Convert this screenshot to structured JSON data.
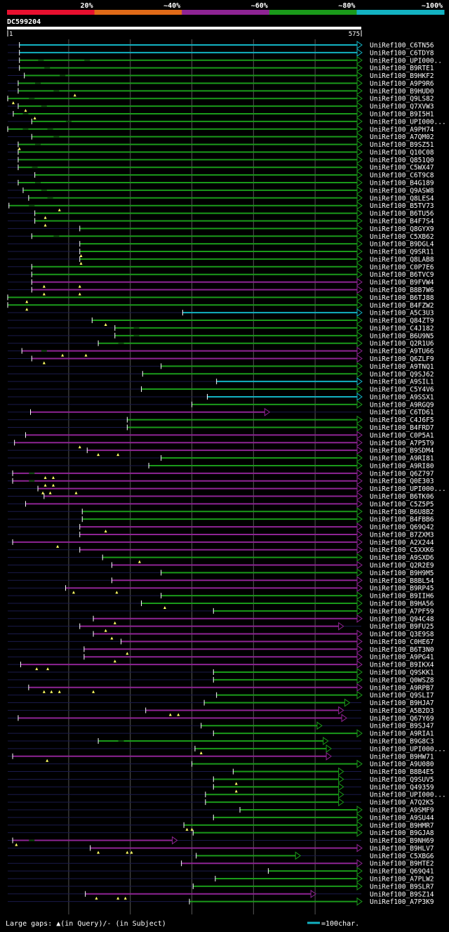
{
  "legend": {
    "labels": [
      "20%",
      "~40%",
      "~60%",
      "~80%",
      "~100%"
    ],
    "colors": [
      "#e8102f",
      "#e06a18",
      "#8e2494",
      "#1a9a1a",
      "#13b2c2"
    ]
  },
  "query": {
    "name": "DC599204",
    "start": "1",
    "end": "575",
    "length": 575
  },
  "footer": {
    "gaps_text": "Large gaps: ▲(in Query)/- (in Subject)",
    "scale_text": "=100char."
  },
  "colors": {
    "background": "#000000",
    "track": "#1a1a4a",
    "grid": "#555555",
    "label": "#ffffff"
  },
  "chart_data": {
    "type": "alignment-map",
    "x_range": [
      1,
      575
    ],
    "hits": [
      {
        "label": "UniRef100_C6TN56",
        "s": 20,
        "e": 575,
        "c": "#13b2c2",
        "tri": [],
        "gaps": []
      },
      {
        "label": "UniRef100_C6TDY8",
        "s": 20,
        "e": 575,
        "c": "#13b2c2",
        "tri": [],
        "gaps": []
      },
      {
        "label": "UniRef100_UPI000..",
        "s": 20,
        "e": 575,
        "c": "#1a9a1a",
        "tri": [],
        "gaps": [
          55,
          130
        ]
      },
      {
        "label": "UniRef100_B9RTE1",
        "s": 20,
        "e": 575,
        "c": "#1a9a1a",
        "tri": [],
        "gaps": [
          65
        ]
      },
      {
        "label": "UniRef100_B9HKF2",
        "s": 28,
        "e": 575,
        "c": "#1a9a1a",
        "tri": [],
        "gaps": [
          90
        ]
      },
      {
        "label": "UniRef100_A9P9R6",
        "s": 18,
        "e": 575,
        "c": "#1a9a1a",
        "tri": [],
        "gaps": [
          50
        ]
      },
      {
        "label": "UniRef100_B9HUD0",
        "s": 18,
        "e": 575,
        "c": "#1a9a1a",
        "tri": [
          110
        ],
        "gaps": [
          80
        ]
      },
      {
        "label": "UniRef100_Q9LS82",
        "s": 1,
        "e": 575,
        "c": "#1a9a1a",
        "tri": [
          10
        ],
        "gaps": [
          40
        ]
      },
      {
        "label": "UniRef100_Q7XVW3",
        "s": 18,
        "e": 575,
        "c": "#1a9a1a",
        "tri": [
          30
        ],
        "gaps": [
          60
        ]
      },
      {
        "label": "UniRef100_B9I5H1",
        "s": 10,
        "e": 575,
        "c": "#1a9a1a",
        "tri": [
          45
        ],
        "gaps": [
          30
        ]
      },
      {
        "label": "UniRef100_UPI000...",
        "s": 40,
        "e": 575,
        "c": "#1a9a1a",
        "tri": [],
        "gaps": [
          100
        ]
      },
      {
        "label": "UniRef100_A9PH74",
        "s": 1,
        "e": 575,
        "c": "#1a9a1a",
        "tri": [],
        "gaps": [
          30,
          70
        ]
      },
      {
        "label": "UniRef100_A7QM02",
        "s": 40,
        "e": 575,
        "c": "#1a9a1a",
        "tri": [],
        "gaps": [
          80
        ]
      },
      {
        "label": "UniRef100_B9SZ51",
        "s": 18,
        "e": 575,
        "c": "#1a9a1a",
        "tri": [
          20
        ],
        "gaps": [
          50
        ]
      },
      {
        "label": "UniRef100_Q10C08",
        "s": 18,
        "e": 575,
        "c": "#1a9a1a",
        "tri": [],
        "gaps": []
      },
      {
        "label": "UniRef100_Q851Q0",
        "s": 18,
        "e": 575,
        "c": "#1a9a1a",
        "tri": [],
        "gaps": []
      },
      {
        "label": "UniRef100_C5WX47",
        "s": 18,
        "e": 575,
        "c": "#1a9a1a",
        "tri": [],
        "gaps": [
          45
        ]
      },
      {
        "label": "UniRef100_C6T9C8",
        "s": 45,
        "e": 575,
        "c": "#1a9a1a",
        "tri": [],
        "gaps": []
      },
      {
        "label": "UniRef100_B4G189",
        "s": 18,
        "e": 575,
        "c": "#1a9a1a",
        "tri": [],
        "gaps": [
          50
        ]
      },
      {
        "label": "UniRef100_Q9ASW8",
        "s": 26,
        "e": 575,
        "c": "#1a9a1a",
        "tri": [],
        "gaps": [
          60
        ]
      },
      {
        "label": "UniRef100_Q8LES4",
        "s": 35,
        "e": 575,
        "c": "#1a9a1a",
        "tri": [],
        "gaps": [
          70
        ]
      },
      {
        "label": "UniRef100_B5TV73",
        "s": 3,
        "e": 575,
        "c": "#1a9a1a",
        "tri": [
          85
        ],
        "gaps": [
          40
        ]
      },
      {
        "label": "UniRef100_B6TU56",
        "s": 45,
        "e": 575,
        "c": "#1a9a1a",
        "tri": [
          62
        ],
        "gaps": []
      },
      {
        "label": "UniRef100_B4F7S4",
        "s": 45,
        "e": 575,
        "c": "#1a9a1a",
        "tri": [
          62
        ],
        "gaps": []
      },
      {
        "label": "UniRef100_Q8GYX9",
        "s": 118,
        "e": 575,
        "c": "#1a9a1a",
        "tri": [],
        "gaps": []
      },
      {
        "label": "UniRef100_C5XB62",
        "s": 40,
        "e": 575,
        "c": "#1a9a1a",
        "tri": [],
        "gaps": [
          80
        ]
      },
      {
        "label": "UniRef100_B9DGL4",
        "s": 118,
        "e": 575,
        "c": "#1a9a1a",
        "tri": [],
        "gaps": []
      },
      {
        "label": "UniRef100_Q9SR11",
        "s": 118,
        "e": 575,
        "c": "#1a9a1a",
        "tri": [
          120
        ],
        "gaps": []
      },
      {
        "label": "UniRef100_Q8LAB8",
        "s": 118,
        "e": 575,
        "c": "#1a9a1a",
        "tri": [
          120
        ],
        "gaps": []
      },
      {
        "label": "UniRef100_C0P7E6",
        "s": 40,
        "e": 575,
        "c": "#1a9a1a",
        "tri": [],
        "gaps": []
      },
      {
        "label": "UniRef100_B6TVC9",
        "s": 40,
        "e": 575,
        "c": "#1a9a1a",
        "tri": [],
        "gaps": []
      },
      {
        "label": "UniRef100_B9FVW4",
        "s": 40,
        "e": 575,
        "c": "#8e2494",
        "tri": [
          60,
          118
        ],
        "gaps": []
      },
      {
        "label": "UniRef100_B8B7W6",
        "s": 40,
        "e": 575,
        "c": "#8e2494",
        "tri": [
          60,
          118
        ],
        "gaps": []
      },
      {
        "label": "UniRef100_B6TJ88",
        "s": 1,
        "e": 575,
        "c": "#1a9a1a",
        "tri": [
          32
        ],
        "gaps": []
      },
      {
        "label": "UniRef100_B4FZW2",
        "s": 1,
        "e": 575,
        "c": "#1a9a1a",
        "tri": [
          32
        ],
        "gaps": []
      },
      {
        "label": "UniRef100_A5C3U3",
        "s": 285,
        "e": 575,
        "c": "#13b2c2",
        "tri": [],
        "gaps": []
      },
      {
        "label": "UniRef100_Q84ZT9",
        "s": 138,
        "e": 575,
        "c": "#1a9a1a",
        "tri": [
          160
        ],
        "gaps": []
      },
      {
        "label": "UniRef100_C4J182",
        "s": 175,
        "e": 575,
        "c": "#1a9a1a",
        "tri": [],
        "gaps": [
          210
        ]
      },
      {
        "label": "UniRef100_B6U9N5",
        "s": 175,
        "e": 575,
        "c": "#1a9a1a",
        "tri": [],
        "gaps": [
          210
        ]
      },
      {
        "label": "UniRef100_Q2R1U6",
        "s": 148,
        "e": 575,
        "c": "#1a9a1a",
        "tri": [],
        "gaps": [
          185
        ]
      },
      {
        "label": "UniRef100_A9TU66",
        "s": 24,
        "e": 575,
        "c": "#8e2494",
        "tri": [
          90,
          128
        ],
        "gaps": [
          60
        ]
      },
      {
        "label": "UniRef100_Q6ZLF9",
        "s": 40,
        "e": 575,
        "c": "#8e2494",
        "tri": [
          60
        ],
        "gaps": []
      },
      {
        "label": "UniRef100_A9TNQ1",
        "s": 250,
        "e": 575,
        "c": "#1a9a1a",
        "tri": [],
        "gaps": []
      },
      {
        "label": "UniRef100_Q9SJ62",
        "s": 220,
        "e": 575,
        "c": "#1a9a1a",
        "tri": [],
        "gaps": []
      },
      {
        "label": "UniRef100_A9SIL1",
        "s": 340,
        "e": 575,
        "c": "#13b2c2",
        "tri": [],
        "gaps": []
      },
      {
        "label": "UniRef100_C5Y4V6",
        "s": 218,
        "e": 575,
        "c": "#1a9a1a",
        "tri": [],
        "gaps": []
      },
      {
        "label": "UniRef100_A9SSX1",
        "s": 325,
        "e": 575,
        "c": "#13b2c2",
        "tri": [],
        "gaps": []
      },
      {
        "label": "UniRef100_A9RGQ9",
        "s": 300,
        "e": 575,
        "c": "#1a9a1a",
        "tri": [],
        "gaps": []
      },
      {
        "label": "UniRef100_C6TD61",
        "s": 38,
        "e": 425,
        "c": "#8e2494",
        "tri": [],
        "gaps": []
      },
      {
        "label": "UniRef100_C4J6F5",
        "s": 195,
        "e": 575,
        "c": "#1a9a1a",
        "tri": [],
        "gaps": []
      },
      {
        "label": "UniRef100_B4FRD7",
        "s": 195,
        "e": 575,
        "c": "#1a9a1a",
        "tri": [],
        "gaps": []
      },
      {
        "label": "UniRef100_C0P5A1",
        "s": 30,
        "e": 575,
        "c": "#8e2494",
        "tri": [],
        "gaps": []
      },
      {
        "label": "UniRef100_A7P5T9",
        "s": 12,
        "e": 575,
        "c": "#8e2494",
        "tri": [
          118
        ],
        "gaps": []
      },
      {
        "label": "UniRef100_B9SDM4",
        "s": 130,
        "e": 575,
        "c": "#8e2494",
        "tri": [
          148,
          180
        ],
        "gaps": []
      },
      {
        "label": "UniRef100_A9RI81",
        "s": 250,
        "e": 575,
        "c": "#1a9a1a",
        "tri": [],
        "gaps": []
      },
      {
        "label": "UniRef100_A9RI80",
        "s": 230,
        "e": 575,
        "c": "#1a9a1a",
        "tri": [],
        "gaps": []
      },
      {
        "label": "UniRef100_Q6Z797",
        "s": 9,
        "e": 575,
        "c": "#8e2494",
        "tri": [
          62,
          75
        ],
        "gaps": [
          40
        ]
      },
      {
        "label": "UniRef100_Q0E303",
        "s": 9,
        "e": 575,
        "c": "#8e2494",
        "tri": [
          62,
          75
        ],
        "gaps": [
          40
        ]
      },
      {
        "label": "UniRef100_UPI000...",
        "s": 50,
        "e": 575,
        "c": "#8e2494",
        "tri": [
          58,
          70,
          112
        ],
        "gaps": []
      },
      {
        "label": "UniRef100_B6TK06",
        "s": 60,
        "e": 575,
        "c": "#8e2494",
        "tri": [],
        "gaps": []
      },
      {
        "label": "UniRef100_C5Z5P5",
        "s": 30,
        "e": 575,
        "c": "#8e2494",
        "tri": [],
        "gaps": []
      },
      {
        "label": "UniRef100_B6U8B2",
        "s": 122,
        "e": 575,
        "c": "#1a9a1a",
        "tri": [],
        "gaps": []
      },
      {
        "label": "UniRef100_B4FBB6",
        "s": 122,
        "e": 575,
        "c": "#1a9a1a",
        "tri": [],
        "gaps": []
      },
      {
        "label": "UniRef100_Q69Q42",
        "s": 118,
        "e": 575,
        "c": "#8e2494",
        "tri": [
          160
        ],
        "gaps": []
      },
      {
        "label": "UniRef100_B7ZXM3",
        "s": 118,
        "e": 575,
        "c": "#8e2494",
        "tri": [],
        "gaps": []
      },
      {
        "label": "UniRef100_A2X244",
        "s": 9,
        "e": 575,
        "c": "#8e2494",
        "tri": [
          82
        ],
        "gaps": []
      },
      {
        "label": "UniRef100_C5XXK6",
        "s": 118,
        "e": 575,
        "c": "#8e2494",
        "tri": [],
        "gaps": []
      },
      {
        "label": "UniRef100_A9SXD6",
        "s": 155,
        "e": 575,
        "c": "#1a9a1a",
        "tri": [
          215
        ],
        "gaps": []
      },
      {
        "label": "UniRef100_Q2R2E9",
        "s": 170,
        "e": 575,
        "c": "#8e2494",
        "tri": [],
        "gaps": []
      },
      {
        "label": "UniRef100_B9H9M5",
        "s": 250,
        "e": 575,
        "c": "#1a9a1a",
        "tri": [],
        "gaps": []
      },
      {
        "label": "UniRef100_B8BL54",
        "s": 170,
        "e": 575,
        "c": "#8e2494",
        "tri": [],
        "gaps": []
      },
      {
        "label": "UniRef100_B9RP45",
        "s": 95,
        "e": 575,
        "c": "#8e2494",
        "tri": [
          108,
          178
        ],
        "gaps": []
      },
      {
        "label": "UniRef100_B9IIH6",
        "s": 250,
        "e": 575,
        "c": "#1a9a1a",
        "tri": [],
        "gaps": []
      },
      {
        "label": "UniRef100_B9HA56",
        "s": 218,
        "e": 575,
        "c": "#1a9a1a",
        "tri": [
          256
        ],
        "gaps": []
      },
      {
        "label": "UniRef100_A7PF59",
        "s": 335,
        "e": 575,
        "c": "#1a9a1a",
        "tri": [],
        "gaps": []
      },
      {
        "label": "UniRef100_Q94C48",
        "s": 140,
        "e": 575,
        "c": "#8e2494",
        "tri": [
          175
        ],
        "gaps": []
      },
      {
        "label": "UniRef100_B9FU25",
        "s": 118,
        "e": 545,
        "c": "#8e2494",
        "tri": [
          160
        ],
        "gaps": []
      },
      {
        "label": "UniRef100_Q3E9S8",
        "s": 140,
        "e": 575,
        "c": "#8e2494",
        "tri": [
          170
        ],
        "gaps": []
      },
      {
        "label": "UniRef100_C0HE67",
        "s": 185,
        "e": 575,
        "c": "#8e2494",
        "tri": [],
        "gaps": []
      },
      {
        "label": "UniRef100_B6T3N0",
        "s": 125,
        "e": 575,
        "c": "#8e2494",
        "tri": [
          195
        ],
        "gaps": []
      },
      {
        "label": "UniRef100_A9PG41",
        "s": 125,
        "e": 575,
        "c": "#8e2494",
        "tri": [
          175
        ],
        "gaps": []
      },
      {
        "label": "UniRef100_B9IKX4",
        "s": 22,
        "e": 575,
        "c": "#8e2494",
        "tri": [
          48,
          66
        ],
        "gaps": []
      },
      {
        "label": "UniRef100_Q9SKK1",
        "s": 335,
        "e": 575,
        "c": "#1a9a1a",
        "tri": [],
        "gaps": []
      },
      {
        "label": "UniRef100_Q0WSZ8",
        "s": 335,
        "e": 575,
        "c": "#1a9a1a",
        "tri": [],
        "gaps": []
      },
      {
        "label": "UniRef100_A9RPB7",
        "s": 35,
        "e": 575,
        "c": "#8e2494",
        "tri": [
          60,
          72,
          85,
          140
        ],
        "gaps": []
      },
      {
        "label": "UniRef100_Q9SLI7",
        "s": 340,
        "e": 575,
        "c": "#1a9a1a",
        "tri": [],
        "gaps": []
      },
      {
        "label": "UniRef100_B9HJA7",
        "s": 320,
        "e": 555,
        "c": "#1a9a1a",
        "tri": [],
        "gaps": []
      },
      {
        "label": "UniRef100_A5B2D3",
        "s": 225,
        "e": 545,
        "c": "#8e2494",
        "tri": [
          265,
          278
        ],
        "gaps": []
      },
      {
        "label": "UniRef100_Q67Y69",
        "s": 18,
        "e": 550,
        "c": "#8e2494",
        "tri": [],
        "gaps": []
      },
      {
        "label": "UniRef100_B9SJ47",
        "s": 315,
        "e": 510,
        "c": "#1a9a1a",
        "tri": [],
        "gaps": []
      },
      {
        "label": "UniRef100_A9RIA1",
        "s": 335,
        "e": 575,
        "c": "#1a9a1a",
        "tri": [],
        "gaps": []
      },
      {
        "label": "UniRef100_B9G8C3",
        "s": 148,
        "e": 520,
        "c": "#1a9a1a",
        "tri": [],
        "gaps": [
          185
        ]
      },
      {
        "label": "UniRef100_UPI000...",
        "s": 305,
        "e": 525,
        "c": "#1a9a1a",
        "tri": [
          315
        ],
        "gaps": []
      },
      {
        "label": "UniRef100_B9HW71",
        "s": 9,
        "e": 525,
        "c": "#8e2494",
        "tri": [
          65
        ],
        "gaps": []
      },
      {
        "label": "UniRef100_A9U080",
        "s": 300,
        "e": 575,
        "c": "#1a9a1a",
        "tri": [],
        "gaps": []
      },
      {
        "label": "UniRef100_B8B4E5",
        "s": 367,
        "e": 545,
        "c": "#1a9a1a",
        "tri": [],
        "gaps": []
      },
      {
        "label": "UniRef100_Q9SUV5",
        "s": 335,
        "e": 545,
        "c": "#1a9a1a",
        "tri": [
          372
        ],
        "gaps": []
      },
      {
        "label": "UniRef100_Q49359",
        "s": 335,
        "e": 545,
        "c": "#1a9a1a",
        "tri": [
          372
        ],
        "gaps": []
      },
      {
        "label": "UniRef100_UPI000...",
        "s": 322,
        "e": 545,
        "c": "#1a9a1a",
        "tri": [],
        "gaps": []
      },
      {
        "label": "UniRef100_A7Q2K5",
        "s": 322,
        "e": 545,
        "c": "#1a9a1a",
        "tri": [],
        "gaps": []
      },
      {
        "label": "UniRef100_A9SMF9",
        "s": 378,
        "e": 575,
        "c": "#1a9a1a",
        "tri": [],
        "gaps": []
      },
      {
        "label": "UniRef100_A9SU44",
        "s": 335,
        "e": 575,
        "c": "#1a9a1a",
        "tri": [],
        "gaps": []
      },
      {
        "label": "UniRef100_B9HMR7",
        "s": 287,
        "e": 575,
        "c": "#1a9a1a",
        "tri": [
          292,
          300
        ],
        "gaps": []
      },
      {
        "label": "UniRef100_B9GJA8",
        "s": 302,
        "e": 575,
        "c": "#1a9a1a",
        "tri": [],
        "gaps": []
      },
      {
        "label": "UniRef100_B9NH69",
        "s": 9,
        "e": 275,
        "c": "#8e2494",
        "tri": [
          15
        ],
        "gaps": [
          40
        ]
      },
      {
        "label": "UniRef100_B9HLV7",
        "s": 135,
        "e": 575,
        "c": "#8e2494",
        "tri": [
          148,
          195,
          202
        ],
        "gaps": []
      },
      {
        "label": "UniRef100_C5XBG6",
        "s": 307,
        "e": 475,
        "c": "#1a9a1a",
        "tri": [],
        "gaps": []
      },
      {
        "label": "UniRef100_B9HTE2",
        "s": 283,
        "e": 575,
        "c": "#8e2494",
        "tri": [],
        "gaps": []
      },
      {
        "label": "UniRef100_Q69Q41",
        "s": 424,
        "e": 575,
        "c": "#1a9a1a",
        "tri": [],
        "gaps": []
      },
      {
        "label": "UniRef100_A7PLW2",
        "s": 338,
        "e": 575,
        "c": "#1a9a1a",
        "tri": [],
        "gaps": []
      },
      {
        "label": "UniRef100_B9SLR7",
        "s": 302,
        "e": 575,
        "c": "#1a9a1a",
        "tri": [],
        "gaps": []
      },
      {
        "label": "UniRef100_B9SZ14",
        "s": 127,
        "e": 500,
        "c": "#8e2494",
        "tri": [
          145,
          180,
          192
        ],
        "gaps": []
      },
      {
        "label": "UniRef100_A7P3K9",
        "s": 296,
        "e": 575,
        "c": "#1a9a1a",
        "tri": [],
        "gaps": []
      }
    ]
  }
}
